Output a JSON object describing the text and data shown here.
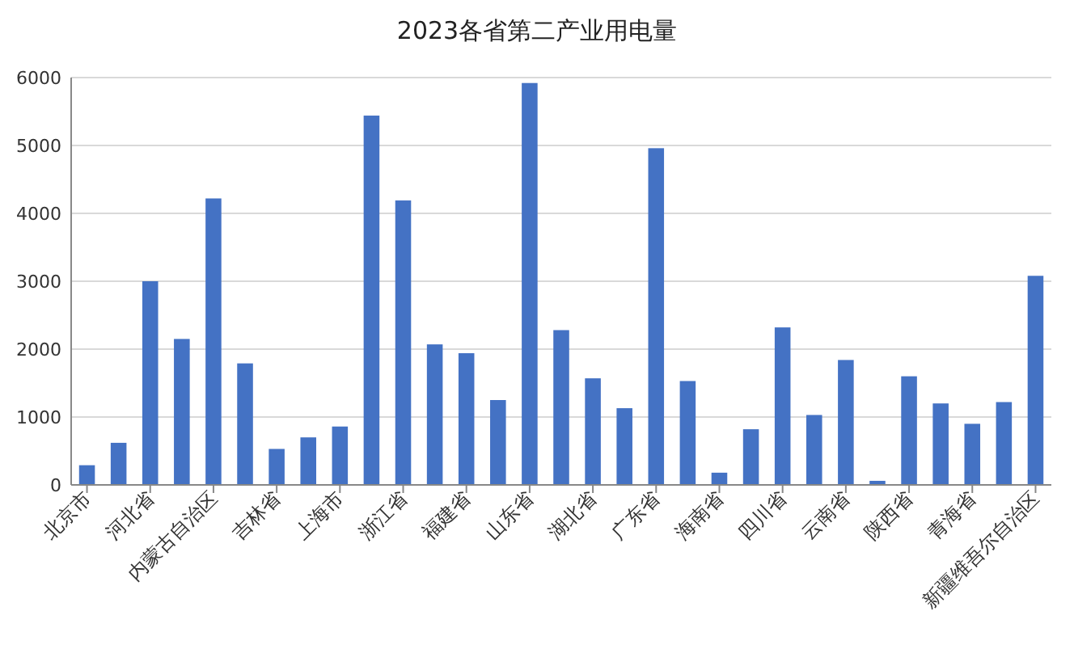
{
  "chart_data": {
    "type": "bar",
    "title": "2023各省第二产业用电量",
    "categories": [
      "北京市",
      null,
      "河北省",
      null,
      "内蒙古自治区",
      null,
      "吉林省",
      null,
      "上海市",
      null,
      "浙江省",
      null,
      "福建省",
      null,
      "山东省",
      null,
      "湖北省",
      null,
      "广东省",
      null,
      "海南省",
      null,
      "四川省",
      null,
      "云南省",
      null,
      "陕西省",
      null,
      "青海省",
      null,
      "新疆维吾尔自治区"
    ],
    "values": [
      290,
      620,
      3000,
      2150,
      4220,
      1790,
      530,
      700,
      860,
      5440,
      4190,
      2070,
      1940,
      1250,
      5920,
      2280,
      1570,
      1130,
      4960,
      1530,
      180,
      820,
      2320,
      1030,
      1840,
      60,
      1600,
      1200,
      900,
      1220,
      3080
    ],
    "color": "#4472c4",
    "ylim": [
      0,
      6000
    ],
    "yticks": [
      0,
      1000,
      2000,
      3000,
      4000,
      5000,
      6000
    ],
    "grid": "y"
  }
}
